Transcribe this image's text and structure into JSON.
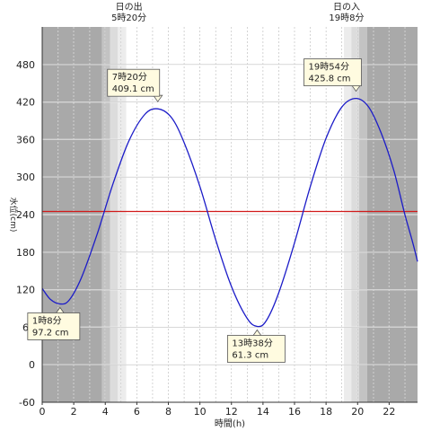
{
  "chart_data": {
    "type": "line",
    "xlabel": "時間(h)",
    "ylabel": "水位(cm)",
    "xlim": [
      0,
      23.8
    ],
    "ylim": [
      -60,
      540
    ],
    "x_ticks": [
      0,
      2,
      4,
      6,
      8,
      10,
      12,
      14,
      16,
      18,
      20,
      22
    ],
    "y_ticks": [
      -60,
      0,
      60,
      120,
      180,
      240,
      300,
      360,
      420,
      480
    ],
    "grid": true,
    "reference_line": {
      "value": 245,
      "color": "#d11a1a"
    },
    "series": [
      {
        "color": "#1c1cc8",
        "points": [
          [
            0.0,
            122
          ],
          [
            0.5,
            105
          ],
          [
            1.13,
            97.2
          ],
          [
            1.7,
            103
          ],
          [
            2.5,
            140
          ],
          [
            3.5,
            210
          ],
          [
            4.5,
            290
          ],
          [
            5.5,
            358
          ],
          [
            6.5,
            400
          ],
          [
            7.33,
            409.1
          ],
          [
            8.2,
            395
          ],
          [
            9.0,
            355
          ],
          [
            10.0,
            285
          ],
          [
            11.0,
            200
          ],
          [
            12.0,
            125
          ],
          [
            13.0,
            74
          ],
          [
            13.63,
            61.3
          ],
          [
            14.2,
            70
          ],
          [
            15.0,
            115
          ],
          [
            16.0,
            195
          ],
          [
            17.0,
            285
          ],
          [
            18.0,
            362
          ],
          [
            19.0,
            412
          ],
          [
            19.9,
            425.8
          ],
          [
            20.7,
            412
          ],
          [
            21.5,
            370
          ],
          [
            22.3,
            310
          ],
          [
            23.0,
            240
          ],
          [
            23.5,
            195
          ],
          [
            23.8,
            165
          ]
        ]
      }
    ],
    "annotations": [
      {
        "time": "1時8分",
        "level": "97.2 cm",
        "x": 1.13,
        "y": 97.2
      },
      {
        "time": "7時20分",
        "level": "409.1 cm",
        "x": 7.33,
        "y": 409.1
      },
      {
        "time": "13時38分",
        "level": "61.3 cm",
        "x": 13.63,
        "y": 61.3
      },
      {
        "time": "19時54分",
        "level": "425.8 cm",
        "x": 19.9,
        "y": 425.8
      }
    ],
    "sunrise": {
      "label": "日の出",
      "time": "5時20分",
      "x": 5.33
    },
    "sunset": {
      "label": "日の入",
      "time": "19時8分",
      "x": 19.13
    },
    "shading": [
      {
        "from": 0,
        "to": 3.8,
        "shade": "#a9a9a9"
      },
      {
        "from": 3.8,
        "to": 4.3,
        "shade": "#c3c3c3"
      },
      {
        "from": 4.3,
        "to": 4.8,
        "shade": "#dcdcdc"
      },
      {
        "from": 4.8,
        "to": 5.33,
        "shade": "#ececec"
      },
      {
        "from": 19.13,
        "to": 19.6,
        "shade": "#ececec"
      },
      {
        "from": 19.6,
        "to": 20.1,
        "shade": "#dcdcdc"
      },
      {
        "from": 20.1,
        "to": 20.6,
        "shade": "#c3c3c3"
      },
      {
        "from": 20.6,
        "to": 23.8,
        "shade": "#a9a9a9"
      }
    ]
  }
}
